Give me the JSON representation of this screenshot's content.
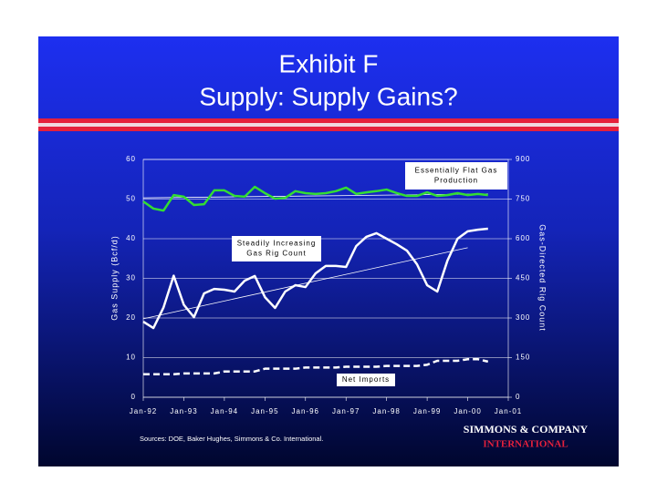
{
  "chart_data": {
    "type": "line",
    "title": "Exhibit F",
    "subtitle": "Supply:  Supply Gains?",
    "y_label": "Gas Supply (Bcf/d)",
    "y2_label": "Gas-Directed Rig Count",
    "xlim": [
      1992,
      2001
    ],
    "xticks": [
      {
        "value": 1992,
        "label": "Jan-92"
      },
      {
        "value": 1993,
        "label": "Jan-93"
      },
      {
        "value": 1994,
        "label": "Jan-94"
      },
      {
        "value": 1995,
        "label": "Jan-95"
      },
      {
        "value": 1996,
        "label": "Jan-96"
      },
      {
        "value": 1997,
        "label": "Jan-97"
      },
      {
        "value": 1998,
        "label": "Jan-98"
      },
      {
        "value": 1999,
        "label": "Jan-99"
      },
      {
        "value": 2000,
        "label": "Jan-00"
      },
      {
        "value": 2001,
        "label": "Jan-01"
      }
    ],
    "ylim": [
      0,
      60
    ],
    "yticks": [
      0,
      10,
      20,
      30,
      40,
      50,
      60
    ],
    "y2lim": [
      0,
      900
    ],
    "y2ticks": [
      0,
      150,
      300,
      450,
      600,
      750,
      900
    ],
    "grid": true,
    "x": [
      1992,
      1992.25,
      1992.5,
      1992.75,
      1993,
      1993.25,
      1993.5,
      1993.75,
      1994,
      1994.25,
      1994.5,
      1994.75,
      1995,
      1995.25,
      1995.5,
      1995.75,
      1996,
      1996.25,
      1996.5,
      1996.75,
      1997,
      1997.25,
      1997.5,
      1997.75,
      1998,
      1998.25,
      1998.5,
      1998.75,
      1999,
      1999.25,
      1999.5,
      1999.75,
      2000,
      2000.25,
      2000.5
    ],
    "series": [
      {
        "color": "#33dd33",
        "dash": false,
        "axis": "y",
        "values": [
          49.4,
          47.6,
          47.1,
          51,
          50.6,
          48.5,
          48.7,
          52.2,
          52.2,
          50.8,
          50.6,
          53.1,
          51.5,
          50.1,
          50.3,
          52,
          51.5,
          51.3,
          51.5,
          52,
          52.9,
          51.3,
          51.7,
          52,
          52.4,
          51.5,
          50.8,
          50.8,
          51.7,
          50.8,
          51,
          51.5,
          51,
          51.3,
          51
        ]
      },
      {
        "color": "#ffffff",
        "dash": false,
        "axis": "y2",
        "values": [
          286,
          262,
          340,
          460,
          350,
          303,
          393,
          410,
          407,
          400,
          441,
          459,
          379,
          338,
          400,
          424,
          417,
          469,
          497,
          497,
          493,
          572,
          607,
          621,
          600,
          579,
          555,
          503,
          424,
          400,
          517,
          600,
          628,
          634,
          638
        ]
      },
      {
        "color": "#ffffff",
        "dash": true,
        "axis": "y",
        "values": [
          5.8,
          5.8,
          5.8,
          5.8,
          6,
          6,
          6,
          6,
          6.5,
          6.5,
          6.5,
          6.5,
          7.2,
          7.2,
          7.2,
          7.2,
          7.5,
          7.5,
          7.5,
          7.5,
          7.7,
          7.7,
          7.7,
          7.7,
          7.9,
          7.9,
          7.9,
          7.9,
          8.2,
          9.2,
          9.2,
          9.2,
          9.6,
          9.6,
          9.0
        ]
      }
    ],
    "trend_lines": [
      {
        "color": "#ffffff",
        "axis": "y",
        "x": [
          1992,
          2000.5
        ],
        "values": [
          50.3,
          51.3
        ]
      },
      {
        "color": "#ffffff",
        "axis": "y2",
        "x": [
          1992,
          2000
        ],
        "values": [
          297,
          566
        ]
      }
    ],
    "annotations": [
      {
        "lines": [
          "Essentially Flat Gas",
          "Production"
        ]
      },
      {
        "lines": [
          "Steadily Increasing",
          "Gas Rig Count"
        ]
      },
      {
        "lines": [
          "Net Imports"
        ]
      }
    ]
  },
  "source": "Sources: DOE, Baker Hughes, Simmons & Co. International.",
  "logo": {
    "name": "SIMMONS & COMPANY",
    "tagline": "INTERNATIONAL"
  }
}
